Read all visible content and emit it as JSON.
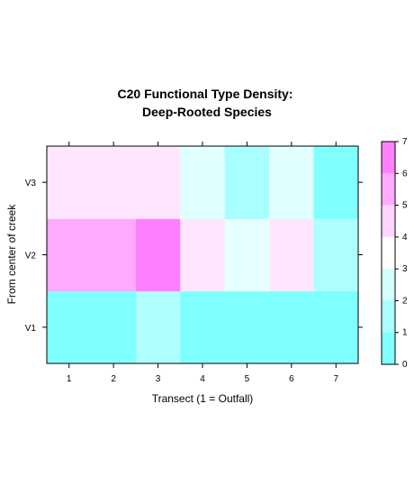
{
  "chart_data": {
    "type": "heatmap",
    "title_lines": [
      "C20 Functional Type Density:",
      "Deep-Rooted Species"
    ],
    "xlabel": "Transect (1 = Outfall)",
    "ylabel": "From center of creek",
    "x_categories": [
      "1",
      "2",
      "3",
      "4",
      "5",
      "6",
      "7"
    ],
    "y_categories": [
      "V1",
      "V2",
      "V3"
    ],
    "values": {
      "V1": [
        1,
        1,
        2,
        1,
        1,
        1,
        1
      ],
      "V2": [
        6,
        6,
        7,
        5,
        3,
        5,
        2
      ],
      "V3": [
        5,
        5,
        5,
        3,
        2,
        3,
        1
      ]
    },
    "colorkey": {
      "ticks": [
        "0",
        "1",
        "2",
        "3",
        "4",
        "5",
        "6",
        "7"
      ],
      "bands": [
        {
          "from": 0,
          "to": 1,
          "color": "#80ffff"
        },
        {
          "from": 1,
          "to": 2,
          "color": "#a9ffff"
        },
        {
          "from": 2,
          "to": 3,
          "color": "#d4ffff"
        },
        {
          "from": 3,
          "to": 4,
          "color": "#ffffff"
        },
        {
          "from": 4,
          "to": 5,
          "color": "#ffd5ff"
        },
        {
          "from": 5,
          "to": 6,
          "color": "#ffaaff"
        },
        {
          "from": 6,
          "to": 7,
          "color": "#ff80ff"
        }
      ],
      "range": [
        0,
        7
      ]
    },
    "cell_colors": {
      "V1": [
        "#80ffff",
        "#80ffff",
        "#b0ffff",
        "#80ffff",
        "#80ffff",
        "#80ffff",
        "#80ffff"
      ],
      "V2": [
        "#ffaaff",
        "#ffaaff",
        "#ff80ff",
        "#ffe6ff",
        "#e6ffff",
        "#ffe6ff",
        "#aeffff"
      ],
      "V3": [
        "#ffe6ff",
        "#ffe6ff",
        "#ffe6ff",
        "#e0ffff",
        "#a9ffff",
        "#e0ffff",
        "#80ffff"
      ]
    }
  }
}
